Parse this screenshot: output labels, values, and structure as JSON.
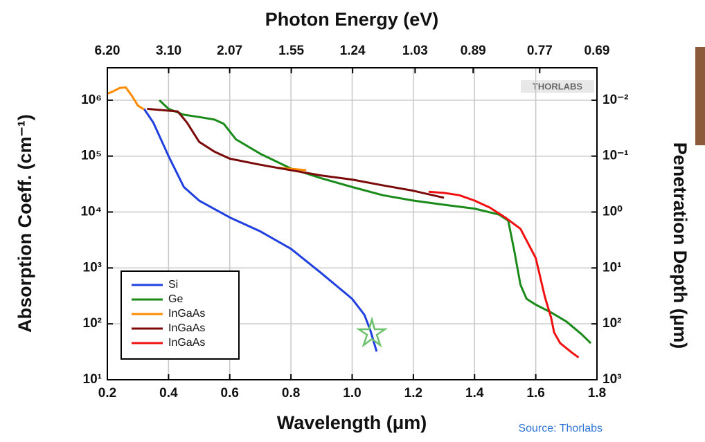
{
  "chart_data": {
    "type": "line",
    "title": "Photon Energy (eV)",
    "xlabel": "Wavelength (μm)",
    "ylabel": "Absorption Coeff. (cm⁻¹)",
    "y2label": "Penetration Depth (μm)",
    "logo": "THORLABS",
    "source": "Source: Thorlabs",
    "xlim": [
      0.2,
      1.8
    ],
    "xticks": [
      0.2,
      0.4,
      0.6,
      0.8,
      {
        "value": 1,
        "label": "1.0"
      },
      1.2,
      1.4,
      1.6,
      1.8
    ],
    "x2lim": [
      6.2,
      0.69
    ],
    "x2scale": "reciprocal",
    "x2ticks": [
      {
        "value": 6.2,
        "label": "6.20"
      },
      {
        "value": 3.1,
        "label": "3.10"
      },
      2.07,
      1.55,
      1.24,
      1.03,
      0.89,
      0.77,
      0.69
    ],
    "ylim": [
      10,
      3800000
    ],
    "ylog": true,
    "yticks": [
      {
        "value": 10,
        "label": "10¹"
      },
      {
        "value": 100,
        "label": "10²"
      },
      {
        "value": 1000,
        "label": "10³"
      },
      {
        "value": 10000,
        "label": "10⁴"
      },
      {
        "value": 100000,
        "label": "10⁵"
      },
      {
        "value": 1000000,
        "label": "10⁶"
      }
    ],
    "y2lim": [
      1000,
      0.00263
    ],
    "y2log": true,
    "y2ticks": [
      {
        "value": 0.01,
        "label": "10⁻²"
      },
      {
        "value": 0.1,
        "label": "10⁻¹"
      },
      {
        "value": 1,
        "label": "10⁰"
      },
      {
        "value": 10,
        "label": "10¹"
      },
      {
        "value": 100,
        "label": "10²"
      },
      {
        "value": 1000,
        "label": "10³"
      }
    ],
    "grid": true,
    "legend": "lower-left",
    "series": [
      {
        "name": "Si",
        "color": "#1f3fe0",
        "x": [
          0.32,
          0.35,
          0.4,
          0.45,
          0.5,
          0.6,
          0.7,
          0.8,
          0.9,
          1.0,
          1.04,
          1.06,
          1.08
        ],
        "values": [
          700000,
          400000,
          100000,
          28000,
          16000,
          8000,
          4500,
          2200,
          800,
          280,
          145,
          75,
          32
        ]
      },
      {
        "name": "Ge",
        "color": "#1a8a1a",
        "x": [
          0.37,
          0.4,
          0.45,
          0.5,
          0.55,
          0.58,
          0.62,
          0.7,
          0.8,
          0.9,
          1.0,
          1.1,
          1.2,
          1.3,
          1.4,
          1.48,
          1.51,
          1.53,
          1.55,
          1.57,
          1.6,
          1.65,
          1.7,
          1.75,
          1.78
        ],
        "values": [
          1000000,
          700000,
          550000,
          500000,
          450000,
          380000,
          200000,
          110000,
          60000,
          40000,
          28000,
          20000,
          16000,
          13500,
          11500,
          9000,
          7000,
          2000,
          500,
          280,
          220,
          160,
          110,
          65,
          45
        ]
      },
      {
        "name": "InGaAs",
        "color": "#ff8c00",
        "x": [
          0.2,
          0.22,
          0.24,
          0.26,
          0.28,
          0.3,
          0.32,
          null,
          0.76,
          0.85
        ],
        "values": [
          1300000,
          1450000,
          1650000,
          1700000,
          1200000,
          800000,
          680000,
          null,
          62000,
          56000
        ]
      },
      {
        "name": "InGaAs",
        "color": "#7a0a0a",
        "x": [
          0.33,
          0.4,
          0.43,
          0.46,
          0.5,
          0.55,
          0.6,
          0.7,
          0.8,
          0.9,
          1.0,
          1.1,
          1.2,
          1.3
        ],
        "values": [
          700000,
          650000,
          630000,
          400000,
          180000,
          120000,
          90000,
          70000,
          56000,
          45000,
          38000,
          30000,
          24000,
          18000
        ]
      },
      {
        "name": "InGaAs",
        "color": "#f01010",
        "x": [
          1.25,
          1.3,
          1.35,
          1.4,
          1.45,
          1.5,
          1.55,
          1.6,
          1.63,
          1.65,
          1.66,
          1.68,
          1.72,
          1.74
        ],
        "values": [
          23000,
          22000,
          20000,
          16000,
          12000,
          8000,
          5000,
          1500,
          300,
          130,
          70,
          45,
          30,
          25
        ]
      }
    ]
  }
}
